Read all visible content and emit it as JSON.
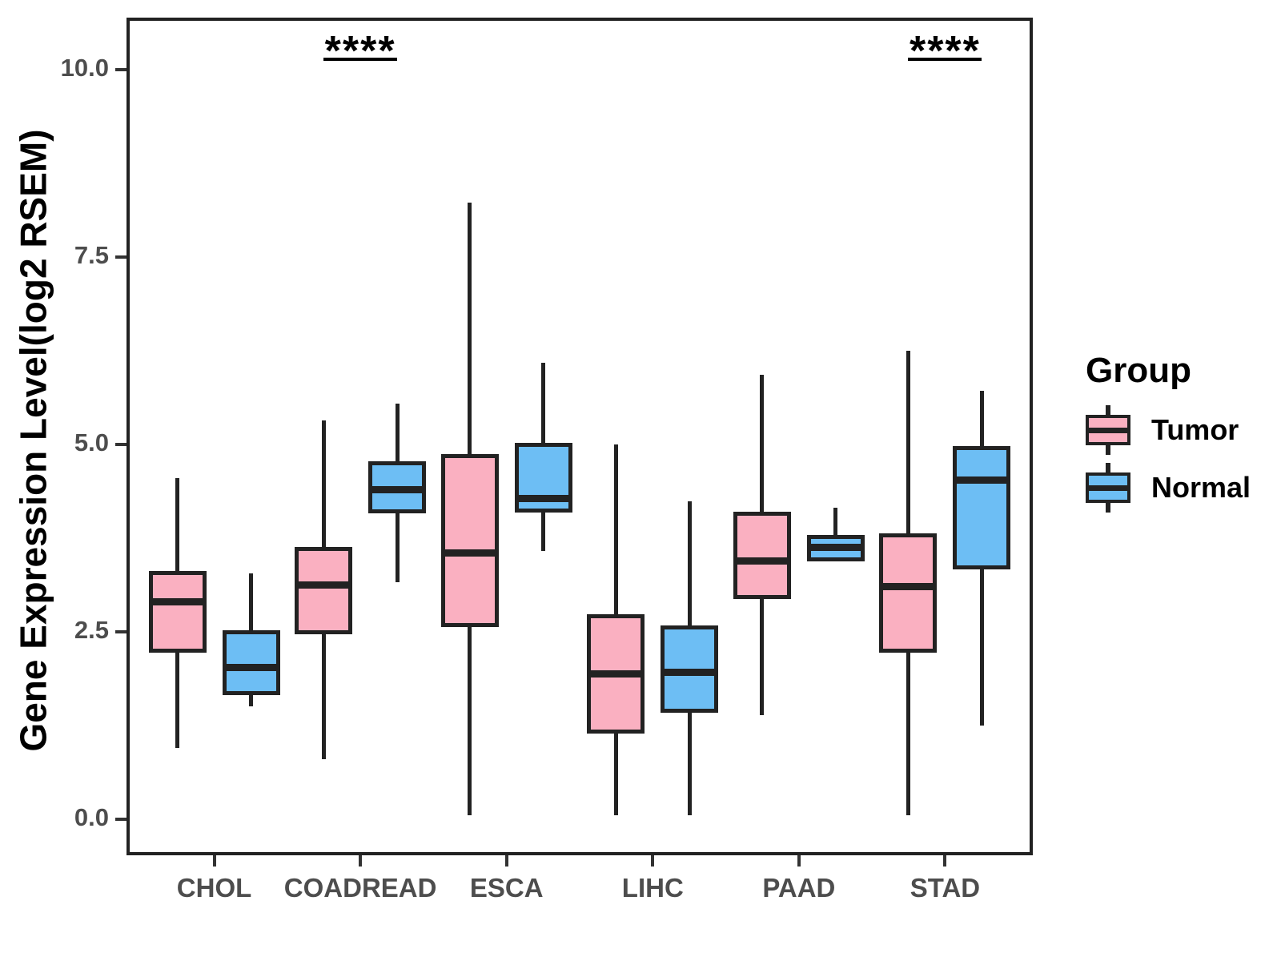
{
  "figure": {
    "background": "#ffffff",
    "panel_border_color": "#222222",
    "axis_text_color": "#4D4D4D"
  },
  "legend": {
    "title": "Group",
    "entries": [
      {
        "label": "Tumor",
        "color": "#FAB0C1"
      },
      {
        "label": "Normal",
        "color": "#6DBEF4"
      }
    ]
  },
  "chart_data": {
    "type": "boxplot",
    "title": "",
    "xlabel": "",
    "ylabel": "Gene Expression Level(log2 RSEM)",
    "categories": [
      "CHOL",
      "COADREAD",
      "ESCA",
      "LIHC",
      "PAAD",
      "STAD"
    ],
    "y_ticks": [
      {
        "value": 10.0,
        "label": "10.0"
      },
      {
        "value": 7.5,
        "label": "7.5"
      },
      {
        "value": 5.0,
        "label": "5.0"
      },
      {
        "value": 2.5,
        "label": "2.5"
      },
      {
        "value": 0.0,
        "label": "0.0"
      }
    ],
    "ylim": [
      -0.48,
      10.7
    ],
    "grid": false,
    "legend_position": "right",
    "series": [
      {
        "name": "Tumor",
        "color": "#FAB0C1",
        "boxes": [
          {
            "category": "CHOL",
            "min": 0.95,
            "q1": 2.22,
            "median": 2.9,
            "q3": 3.31,
            "max": 4.55
          },
          {
            "category": "COADREAD",
            "min": 0.8,
            "q1": 2.47,
            "median": 3.13,
            "q3": 3.63,
            "max": 5.32
          },
          {
            "category": "ESCA",
            "min": 0.05,
            "q1": 2.57,
            "median": 3.55,
            "q3": 4.87,
            "max": 8.23
          },
          {
            "category": "LIHC",
            "min": 0.05,
            "q1": 1.14,
            "median": 1.94,
            "q3": 2.74,
            "max": 5.0
          },
          {
            "category": "PAAD",
            "min": 1.39,
            "q1": 2.94,
            "median": 3.45,
            "q3": 4.11,
            "max": 5.93
          },
          {
            "category": "STAD",
            "min": 0.05,
            "q1": 2.22,
            "median": 3.11,
            "q3": 3.82,
            "max": 6.25
          }
        ]
      },
      {
        "name": "Normal",
        "color": "#6DBEF4",
        "boxes": [
          {
            "category": "CHOL",
            "min": 1.51,
            "q1": 1.66,
            "median": 2.03,
            "q3": 2.52,
            "max": 3.28
          },
          {
            "category": "COADREAD",
            "min": 3.16,
            "q1": 4.08,
            "median": 4.4,
            "q3": 4.78,
            "max": 5.55
          },
          {
            "category": "ESCA",
            "min": 3.58,
            "q1": 4.09,
            "median": 4.28,
            "q3": 5.02,
            "max": 6.09
          },
          {
            "category": "LIHC",
            "min": 0.05,
            "q1": 1.42,
            "median": 1.96,
            "q3": 2.59,
            "max": 4.24
          },
          {
            "category": "PAAD",
            "min": 3.44,
            "q1": 3.44,
            "median": 3.63,
            "q3": 3.8,
            "max": 4.16
          },
          {
            "category": "STAD",
            "min": 1.25,
            "q1": 3.34,
            "median": 4.53,
            "q3": 4.98,
            "max": 5.72
          }
        ]
      }
    ],
    "annotations": [
      {
        "text": "****",
        "category": "COADREAD"
      },
      {
        "text": "****",
        "category": "STAD"
      }
    ]
  }
}
